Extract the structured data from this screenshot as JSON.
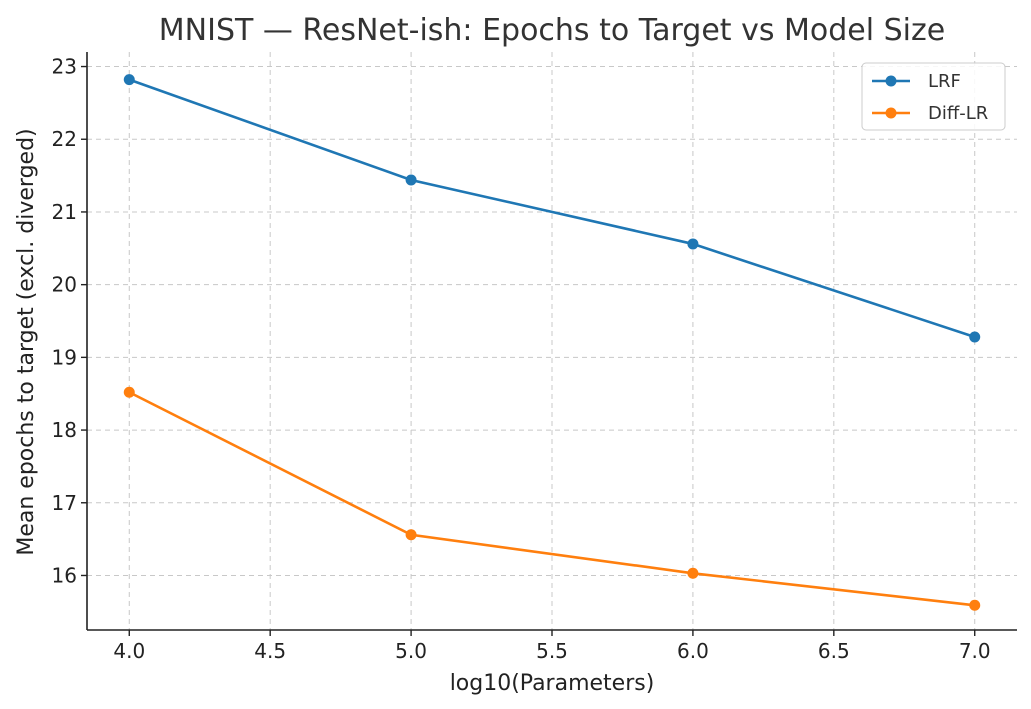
{
  "chart_data": {
    "type": "line",
    "title": "MNIST — ResNet-ish: Epochs to Target vs Model Size",
    "xlabel": "log10(Parameters)",
    "ylabel": "Mean epochs to target (excl. diverged)",
    "x": [
      4.0,
      5.0,
      6.0,
      7.0
    ],
    "xlim": [
      3.85,
      7.15
    ],
    "ylim": [
      15.25,
      23.2
    ],
    "xticks": [
      4.0,
      4.5,
      5.0,
      5.5,
      6.0,
      6.5,
      7.0
    ],
    "xtick_labels": [
      "4.0",
      "4.5",
      "5.0",
      "5.5",
      "6.0",
      "6.5",
      "7.0"
    ],
    "yticks": [
      16,
      17,
      18,
      19,
      20,
      21,
      22,
      23
    ],
    "ytick_labels": [
      "16",
      "17",
      "18",
      "19",
      "20",
      "21",
      "22",
      "23"
    ],
    "grid": true,
    "legend_position": "top-right",
    "series": [
      {
        "name": "LRF",
        "color": "#1f77b4",
        "values": [
          22.82,
          21.44,
          20.56,
          19.28
        ]
      },
      {
        "name": "Diff-LR",
        "color": "#ff7f0e",
        "values": [
          18.52,
          16.56,
          16.03,
          15.59
        ]
      }
    ]
  }
}
